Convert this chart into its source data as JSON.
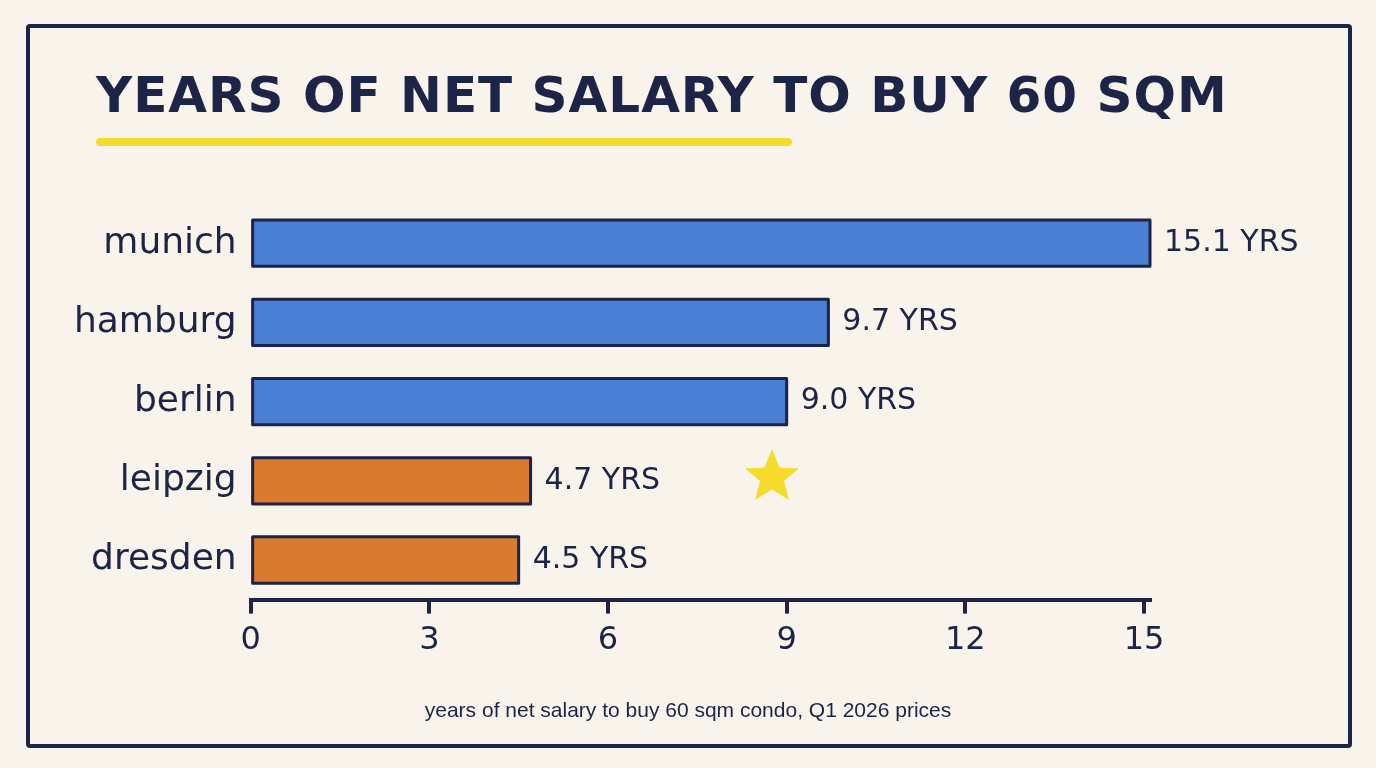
{
  "chart_data": {
    "type": "bar",
    "orientation": "horizontal",
    "title": "YEARS OF NET SALARY TO BUY 60 SQM",
    "xlabel": "years of net salary to buy 60 sqm condo, Q1 2026 prices",
    "categories": [
      "munich",
      "hamburg",
      "berlin",
      "leipzig",
      "dresden"
    ],
    "values": [
      15.1,
      9.7,
      9.0,
      4.7,
      4.5
    ],
    "colors": [
      "#4a7fd4",
      "#4a7fd4",
      "#4a7fd4",
      "#d97a2e",
      "#d97a2e"
    ],
    "value_labels": [
      "15.1 YRS",
      "9.7 YRS",
      "9.0 YRS",
      "4.7 YRS",
      "4.5 YRS"
    ],
    "xlim": [
      0,
      15.1
    ],
    "xticks": [
      0,
      3,
      6,
      9,
      12,
      15
    ],
    "grid": false,
    "legend": false
  }
}
